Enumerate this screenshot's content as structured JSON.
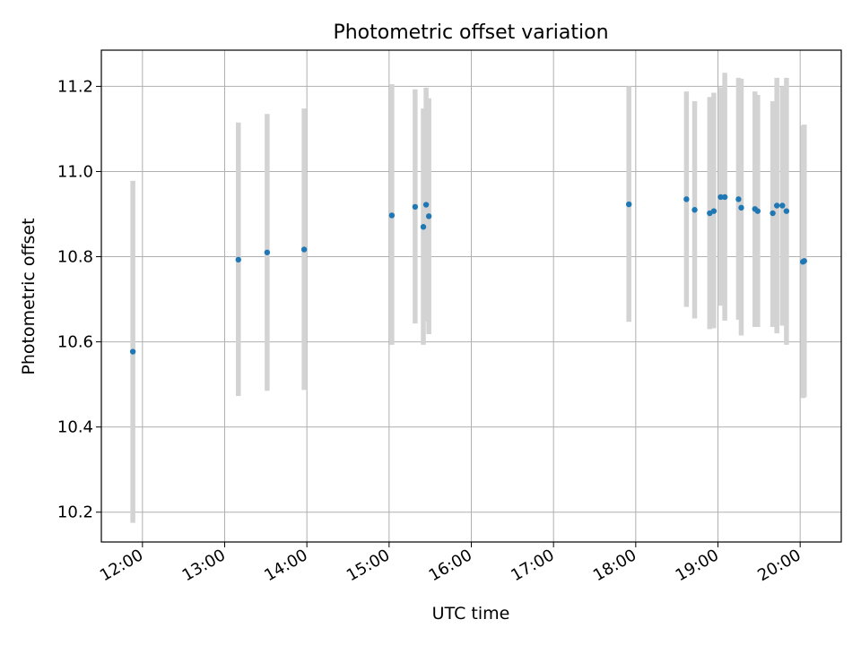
{
  "chart_data": {
    "type": "scatter",
    "title": "Photometric offset variation",
    "xlabel": "UTC time",
    "ylabel": "Photometric offset",
    "grid": true,
    "xlim": [
      "11:30",
      "20:30"
    ],
    "ylim": [
      10.13,
      11.285
    ],
    "x_ticks": [
      "12:00",
      "13:00",
      "14:00",
      "15:00",
      "16:00",
      "17:00",
      "18:00",
      "19:00",
      "20:00"
    ],
    "y_ticks": [
      "10.2",
      "10.4",
      "10.6",
      "10.8",
      "11.0",
      "11.2"
    ],
    "point_color": "#1f77b4",
    "errorbar_color": "#d3d3d3",
    "points": [
      {
        "x": "11:53",
        "y": 10.577,
        "ylow": 10.175,
        "yhigh": 10.978
      },
      {
        "x": "13:10",
        "y": 10.793,
        "ylow": 10.473,
        "yhigh": 11.115
      },
      {
        "x": "13:31",
        "y": 10.81,
        "ylow": 10.485,
        "yhigh": 11.135
      },
      {
        "x": "13:58",
        "y": 10.817,
        "ylow": 10.487,
        "yhigh": 11.148
      },
      {
        "x": "15:02",
        "y": 10.897,
        "ylow": 10.593,
        "yhigh": 11.205
      },
      {
        "x": "15:19",
        "y": 10.917,
        "ylow": 10.643,
        "yhigh": 11.193
      },
      {
        "x": "15:25",
        "y": 10.87,
        "ylow": 10.593,
        "yhigh": 11.148
      },
      {
        "x": "15:27",
        "y": 10.922,
        "ylow": 10.648,
        "yhigh": 11.197
      },
      {
        "x": "15:29",
        "y": 10.895,
        "ylow": 10.618,
        "yhigh": 11.172
      },
      {
        "x": "17:55",
        "y": 10.923,
        "ylow": 10.647,
        "yhigh": 11.2
      },
      {
        "x": "18:37",
        "y": 10.935,
        "ylow": 10.682,
        "yhigh": 11.188
      },
      {
        "x": "18:43",
        "y": 10.91,
        "ylow": 10.655,
        "yhigh": 11.165
      },
      {
        "x": "18:54",
        "y": 10.902,
        "ylow": 10.63,
        "yhigh": 11.175
      },
      {
        "x": "18:57",
        "y": 10.907,
        "ylow": 10.632,
        "yhigh": 11.185
      },
      {
        "x": "19:02",
        "y": 10.94,
        "ylow": 10.685,
        "yhigh": 11.198
      },
      {
        "x": "19:05",
        "y": 10.94,
        "ylow": 10.65,
        "yhigh": 11.232
      },
      {
        "x": "19:15",
        "y": 10.935,
        "ylow": 10.652,
        "yhigh": 11.22
      },
      {
        "x": "19:17",
        "y": 10.915,
        "ylow": 10.615,
        "yhigh": 11.218
      },
      {
        "x": "19:27",
        "y": 10.912,
        "ylow": 10.635,
        "yhigh": 11.188
      },
      {
        "x": "19:29",
        "y": 10.907,
        "ylow": 10.635,
        "yhigh": 11.18
      },
      {
        "x": "19:40",
        "y": 10.902,
        "ylow": 10.635,
        "yhigh": 11.165
      },
      {
        "x": "19:43",
        "y": 10.92,
        "ylow": 10.62,
        "yhigh": 11.22
      },
      {
        "x": "19:47",
        "y": 10.92,
        "ylow": 10.638,
        "yhigh": 11.2
      },
      {
        "x": "19:50",
        "y": 10.907,
        "ylow": 10.593,
        "yhigh": 11.22
      },
      {
        "x": "20:02",
        "y": 10.788,
        "ylow": 10.468,
        "yhigh": 11.108
      },
      {
        "x": "20:03",
        "y": 10.79,
        "ylow": 10.47,
        "yhigh": 11.11
      }
    ]
  }
}
